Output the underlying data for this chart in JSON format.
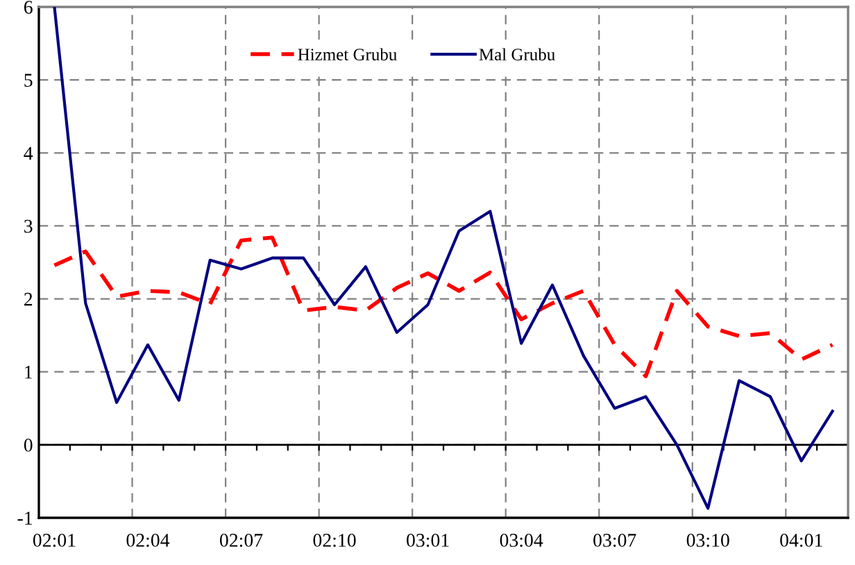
{
  "chart_data": {
    "type": "line",
    "categories": [
      "02:01",
      null,
      null,
      "02:04",
      null,
      null,
      "02:07",
      null,
      null,
      "02:10",
      null,
      null,
      "03:01",
      null,
      null,
      "03:04",
      null,
      null,
      "03:07",
      null,
      null,
      "03:10",
      null,
      null,
      "04:01",
      null
    ],
    "series": [
      {
        "name": "Hizmet Grubu",
        "color": "#ff0000",
        "line_style": "dashed",
        "values": [
          2.46,
          2.65,
          2.03,
          2.11,
          2.09,
          1.93,
          2.8,
          2.84,
          1.84,
          1.89,
          1.84,
          2.15,
          2.35,
          2.11,
          2.36,
          1.72,
          1.94,
          2.11,
          1.37,
          0.94,
          2.11,
          1.62,
          1.49,
          1.53,
          1.17,
          1.37
        ]
      },
      {
        "name": "Mal Grubu",
        "color": "#000080",
        "line_style": "solid",
        "values": [
          6.0,
          1.94,
          0.58,
          1.37,
          0.61,
          2.53,
          2.41,
          2.56,
          2.56,
          1.92,
          2.44,
          1.54,
          1.92,
          2.93,
          3.2,
          1.39,
          2.19,
          1.22,
          0.5,
          0.66,
          0.0,
          -0.87,
          0.88,
          0.66,
          -0.22,
          0.46
        ]
      }
    ],
    "ylim": [
      -1,
      6
    ],
    "yticks": [
      -1,
      0,
      1,
      2,
      3,
      4,
      5,
      6
    ],
    "ref_lines": [
      {
        "axis": "y",
        "value": 0,
        "color": "#000000"
      }
    ],
    "grid": true,
    "legend": "top",
    "marker": "none"
  }
}
